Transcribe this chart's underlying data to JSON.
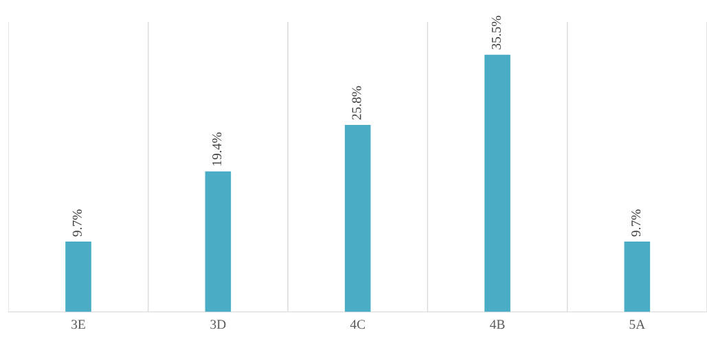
{
  "chart_data": {
    "type": "bar",
    "categories": [
      "3E",
      "3D",
      "4C",
      "4B",
      "5A"
    ],
    "values": [
      9.7,
      19.4,
      25.8,
      35.5,
      9.7
    ],
    "value_labels": [
      "9.7%",
      "19.4%",
      "25.8%",
      "35.5%",
      "9.7%"
    ],
    "color": "#4bacc6",
    "ylim": [
      0,
      40
    ],
    "grid": "x"
  }
}
